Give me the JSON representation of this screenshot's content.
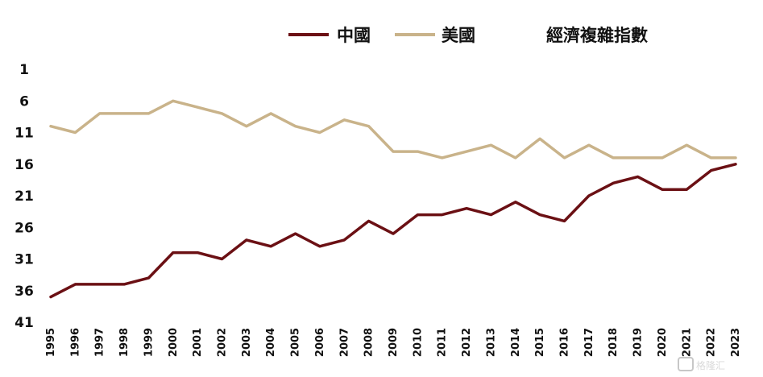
{
  "chart_data": {
    "type": "line",
    "title": "經濟複雜指數",
    "x": [
      1995,
      1996,
      1997,
      1998,
      1999,
      2000,
      2001,
      2002,
      2003,
      2004,
      2005,
      2006,
      2007,
      2008,
      2009,
      2010,
      2011,
      2012,
      2013,
      2014,
      2015,
      2016,
      2017,
      2018,
      2019,
      2020,
      2021,
      2022,
      2023
    ],
    "series": [
      {
        "name": "中國",
        "color": "#6b1014",
        "values": [
          37,
          35,
          35,
          35,
          34,
          30,
          30,
          31,
          28,
          29,
          27,
          29,
          28,
          25,
          27,
          24,
          24,
          23,
          24,
          22,
          24,
          25,
          21,
          19,
          18,
          20,
          20,
          17,
          16
        ]
      },
      {
        "name": "美國",
        "color": "#c9b38a",
        "values": [
          10,
          11,
          8,
          8,
          8,
          6,
          7,
          8,
          10,
          8,
          10,
          11,
          9,
          10,
          14,
          14,
          15,
          14,
          13,
          15,
          12,
          15,
          13,
          15,
          15,
          15,
          13,
          15,
          15
        ]
      }
    ],
    "y_ticks": [
      1,
      6,
      11,
      16,
      21,
      26,
      31,
      36,
      41
    ],
    "ylim": [
      1,
      41
    ],
    "y_inverted": true,
    "grid": false,
    "legend_position": "top"
  },
  "watermark": {
    "text": "格隆汇",
    "icon": "gelonghui-logo-icon"
  }
}
